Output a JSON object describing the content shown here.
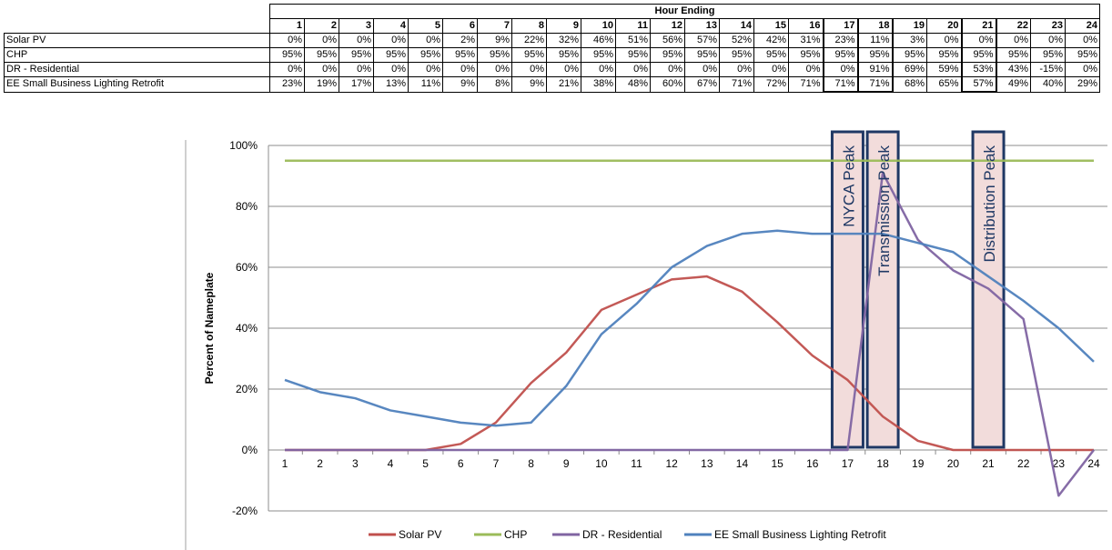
{
  "table": {
    "header_title": "Hour Ending",
    "hours": [
      "1",
      "2",
      "3",
      "4",
      "5",
      "6",
      "7",
      "8",
      "9",
      "10",
      "11",
      "12",
      "13",
      "14",
      "15",
      "16",
      "17",
      "18",
      "19",
      "20",
      "21",
      "22",
      "23",
      "24"
    ],
    "rows": [
      {
        "label": "Solar PV",
        "values": [
          "0%",
          "0%",
          "0%",
          "0%",
          "0%",
          "2%",
          "9%",
          "22%",
          "32%",
          "46%",
          "51%",
          "56%",
          "57%",
          "52%",
          "42%",
          "31%",
          "23%",
          "11%",
          "3%",
          "0%",
          "0%",
          "0%",
          "0%",
          "0%"
        ]
      },
      {
        "label": "CHP",
        "values": [
          "95%",
          "95%",
          "95%",
          "95%",
          "95%",
          "95%",
          "95%",
          "95%",
          "95%",
          "95%",
          "95%",
          "95%",
          "95%",
          "95%",
          "95%",
          "95%",
          "95%",
          "95%",
          "95%",
          "95%",
          "95%",
          "95%",
          "95%",
          "95%"
        ]
      },
      {
        "label": "DR - Residential",
        "values": [
          "0%",
          "0%",
          "0%",
          "0%",
          "0%",
          "0%",
          "0%",
          "0%",
          "0%",
          "0%",
          "0%",
          "0%",
          "0%",
          "0%",
          "0%",
          "0%",
          "0%",
          "91%",
          "69%",
          "59%",
          "53%",
          "43%",
          "-15%",
          "0%"
        ]
      },
      {
        "label": "EE Small Business Lighting Retrofit",
        "values": [
          "23%",
          "19%",
          "17%",
          "13%",
          "11%",
          "9%",
          "8%",
          "9%",
          "21%",
          "38%",
          "48%",
          "60%",
          "67%",
          "71%",
          "72%",
          "71%",
          "71%",
          "71%",
          "68%",
          "65%",
          "57%",
          "49%",
          "40%",
          "29%"
        ]
      }
    ],
    "highlight_hours": [
      17,
      18,
      21
    ]
  },
  "chart_data": {
    "type": "line",
    "x": [
      1,
      2,
      3,
      4,
      5,
      6,
      7,
      8,
      9,
      10,
      11,
      12,
      13,
      14,
      15,
      16,
      17,
      18,
      19,
      20,
      21,
      22,
      23,
      24
    ],
    "series": [
      {
        "name": "Solar PV",
        "color": "#c0504d",
        "values": [
          0,
          0,
          0,
          0,
          0,
          2,
          9,
          22,
          32,
          46,
          51,
          56,
          57,
          52,
          42,
          31,
          23,
          11,
          3,
          0,
          0,
          0,
          0,
          0
        ]
      },
      {
        "name": "CHP",
        "color": "#9bbb59",
        "values": [
          95,
          95,
          95,
          95,
          95,
          95,
          95,
          95,
          95,
          95,
          95,
          95,
          95,
          95,
          95,
          95,
          95,
          95,
          95,
          95,
          95,
          95,
          95,
          95
        ]
      },
      {
        "name": "DR - Residential",
        "color": "#8064a2",
        "values": [
          0,
          0,
          0,
          0,
          0,
          0,
          0,
          0,
          0,
          0,
          0,
          0,
          0,
          0,
          0,
          0,
          0,
          91,
          69,
          59,
          53,
          43,
          -15,
          0
        ]
      },
      {
        "name": "EE Small Business Lighting Retrofit",
        "color": "#4f81bd",
        "values": [
          23,
          19,
          17,
          13,
          11,
          9,
          8,
          9,
          21,
          38,
          48,
          60,
          67,
          71,
          72,
          71,
          71,
          71,
          68,
          65,
          57,
          49,
          40,
          29
        ]
      }
    ],
    "y_ticks": [
      "-20%",
      "0%",
      "20%",
      "40%",
      "60%",
      "80%",
      "100%"
    ],
    "ylim": [
      -20,
      100
    ],
    "xlabel": "",
    "ylabel": "Percent of Nameplate",
    "grid": true,
    "legend_position": "bottom",
    "annotations": [
      {
        "text": "NYCA Peak",
        "hour": 17
      },
      {
        "text": "Transmission Peak",
        "hour": 18
      },
      {
        "text": "Distribution Peak",
        "hour": 21
      }
    ],
    "annotation_fill": "#f2dcdb",
    "annotation_border": "#1f3864"
  }
}
